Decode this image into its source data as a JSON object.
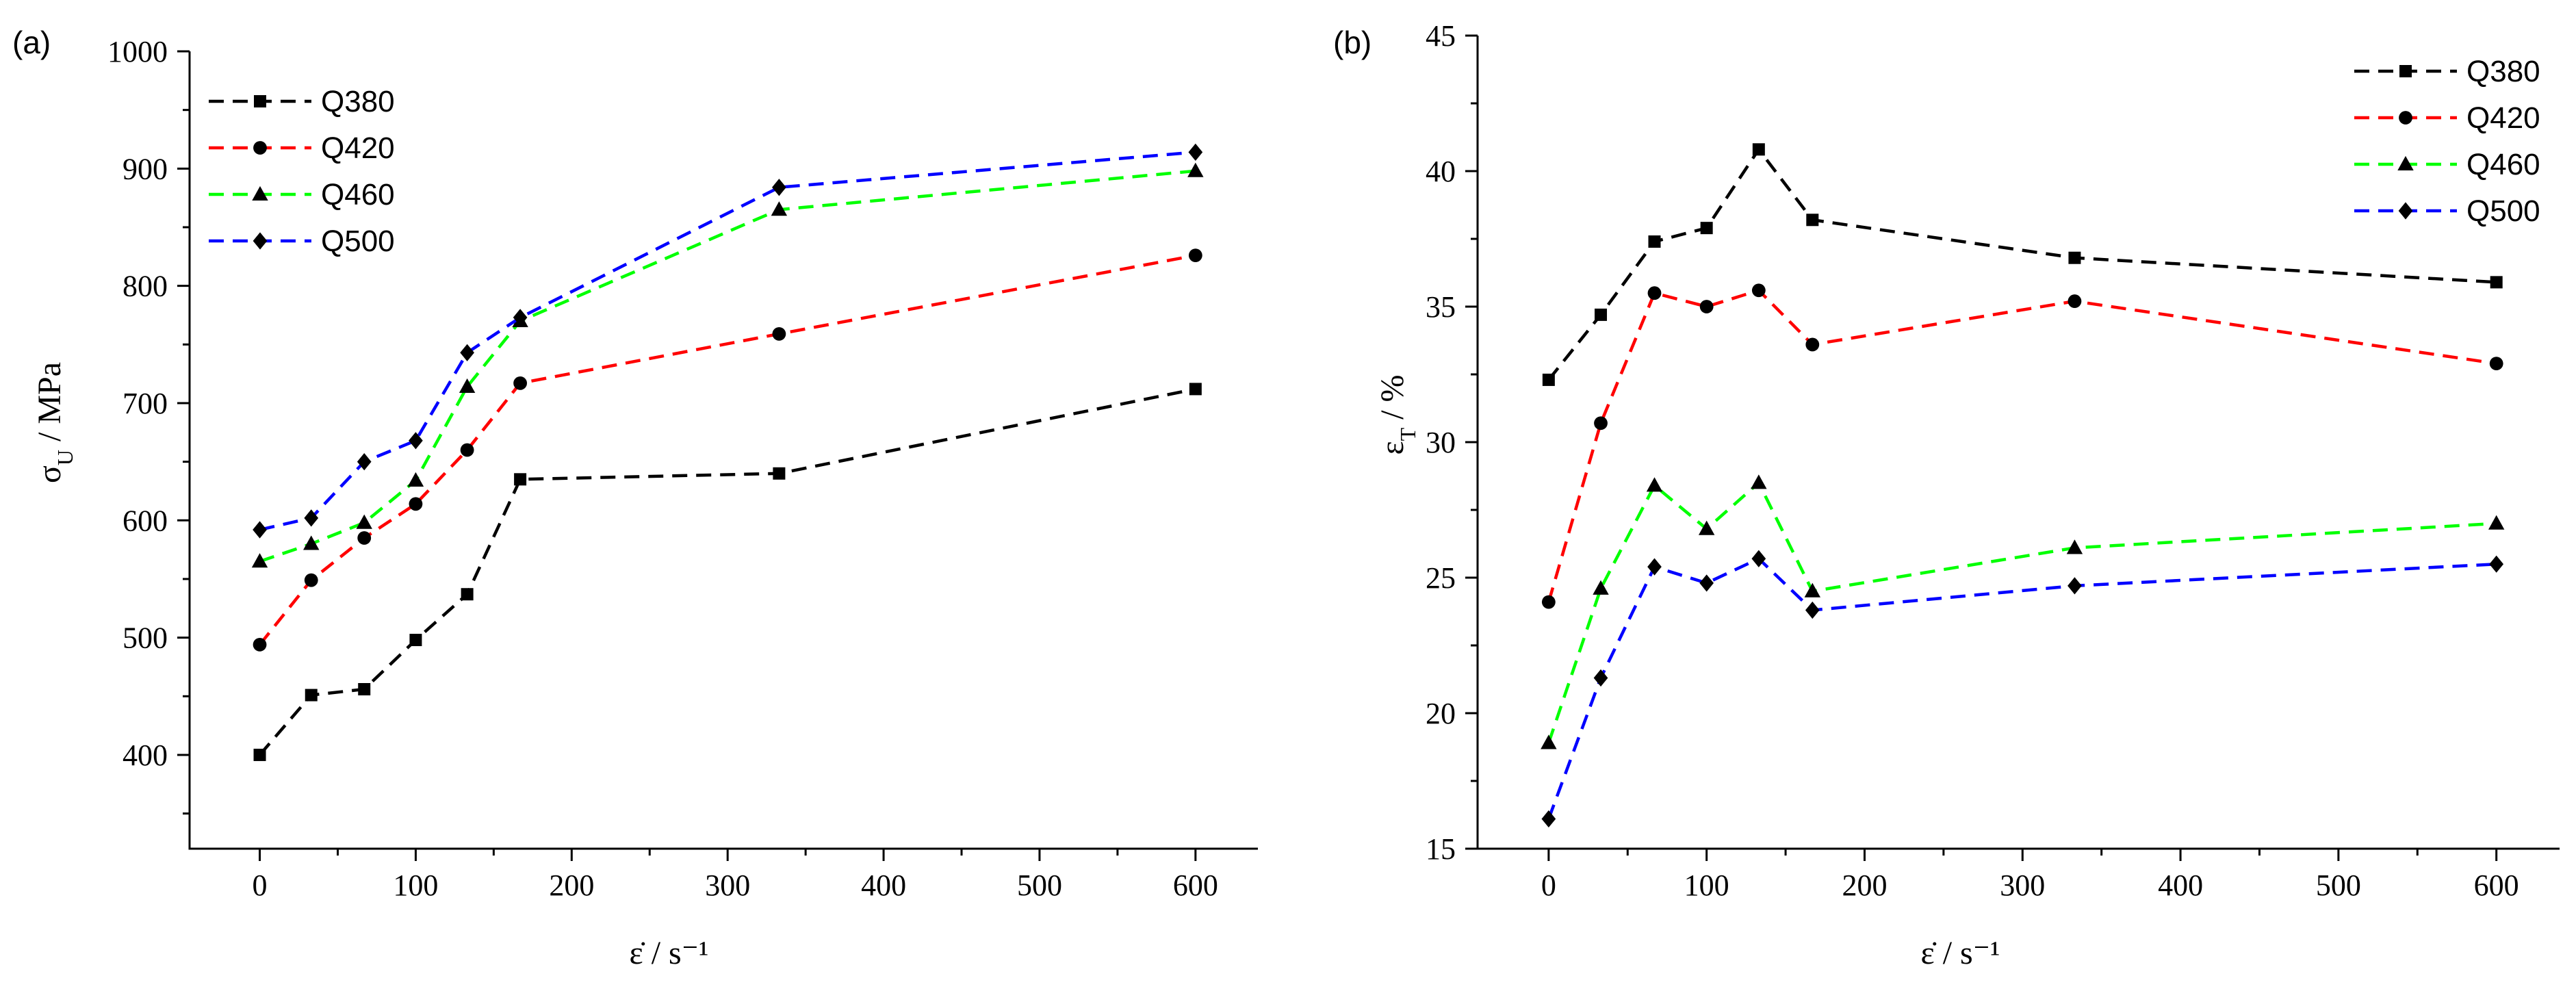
{
  "chart_data": [
    {
      "panel_label": "(a)",
      "type": "line",
      "xlabel": "ε̇ / s⁻¹",
      "ylabel_main": "σ",
      "ylabel_sub": "U",
      "ylabel_tail": " / MPa",
      "xlim": [
        -45,
        640
      ],
      "ylim": [
        320,
        1000
      ],
      "xticks": [
        0,
        100,
        200,
        300,
        400,
        500,
        600
      ],
      "yticks": [
        400,
        500,
        600,
        700,
        800,
        900,
        1000
      ],
      "legend_position": "top-left",
      "x": [
        0,
        33,
        67,
        100,
        133,
        167,
        333,
        600
      ],
      "series": [
        {
          "name": "Q380",
          "color": "#000000",
          "marker": "square",
          "values": [
            400,
            451,
            456,
            498,
            537,
            635,
            640,
            712
          ]
        },
        {
          "name": "Q420",
          "color": "#ff0000",
          "marker": "circle",
          "values": [
            494,
            549,
            585,
            614,
            660,
            717,
            759,
            826
          ]
        },
        {
          "name": "Q460",
          "color": "#00ff00",
          "marker": "triangle",
          "values": [
            565,
            580,
            598,
            634,
            714,
            770,
            865,
            898
          ]
        },
        {
          "name": "Q500",
          "color": "#0000ff",
          "marker": "diamond",
          "values": [
            592,
            602,
            650,
            668,
            743,
            773,
            884,
            914
          ]
        }
      ]
    },
    {
      "panel_label": "(b)",
      "type": "line",
      "xlabel": "ε̇ / s⁻¹",
      "ylabel_main": "ε",
      "ylabel_sub": "T",
      "ylabel_tail": " / %",
      "xlim": [
        -45,
        640
      ],
      "ylim": [
        15,
        45
      ],
      "xticks": [
        0,
        100,
        200,
        300,
        400,
        500,
        600
      ],
      "yticks": [
        15,
        20,
        25,
        30,
        35,
        40,
        45
      ],
      "legend_position": "top-right",
      "x": [
        0,
        33,
        67,
        100,
        133,
        167,
        333,
        600
      ],
      "series": [
        {
          "name": "Q380",
          "color": "#000000",
          "marker": "square",
          "values": [
            32.3,
            34.7,
            37.4,
            37.9,
            40.8,
            38.2,
            36.8,
            35.9
          ]
        },
        {
          "name": "Q420",
          "color": "#ff0000",
          "marker": "circle",
          "values": [
            24.1,
            30.7,
            35.5,
            35.0,
            35.6,
            33.6,
            35.2,
            32.9
          ]
        },
        {
          "name": "Q460",
          "color": "#00ff00",
          "marker": "triangle",
          "values": [
            18.9,
            24.6,
            28.4,
            26.8,
            28.5,
            24.5,
            26.1,
            27.0
          ]
        },
        {
          "name": "Q500",
          "color": "#0000ff",
          "marker": "diamond",
          "values": [
            16.1,
            21.3,
            25.4,
            24.8,
            25.7,
            23.8,
            24.7,
            25.5
          ]
        }
      ]
    }
  ]
}
